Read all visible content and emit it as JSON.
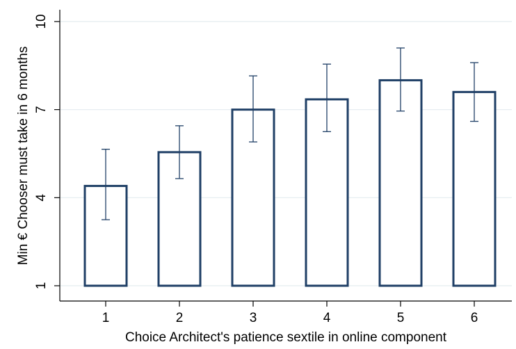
{
  "chart_data": {
    "type": "bar",
    "title": "",
    "xlabel": "Choice Architect's patience sextile in online component",
    "ylabel": "Min € Chooser must take in 6 months",
    "categories": [
      "1",
      "2",
      "3",
      "4",
      "5",
      "6"
    ],
    "values": [
      4.4,
      5.55,
      7.0,
      7.35,
      8.0,
      7.6
    ],
    "error_low": [
      3.25,
      4.65,
      5.9,
      6.25,
      6.95,
      6.6
    ],
    "error_high": [
      5.65,
      6.45,
      8.15,
      8.55,
      9.1,
      8.6
    ],
    "yticks": [
      1,
      4,
      7,
      10
    ],
    "ylim": [
      1,
      10
    ],
    "grid": true,
    "colors": {
      "bar_outline": "#1f3f66",
      "error_bar": "#1f3f66",
      "grid": "#e4ecef"
    }
  }
}
